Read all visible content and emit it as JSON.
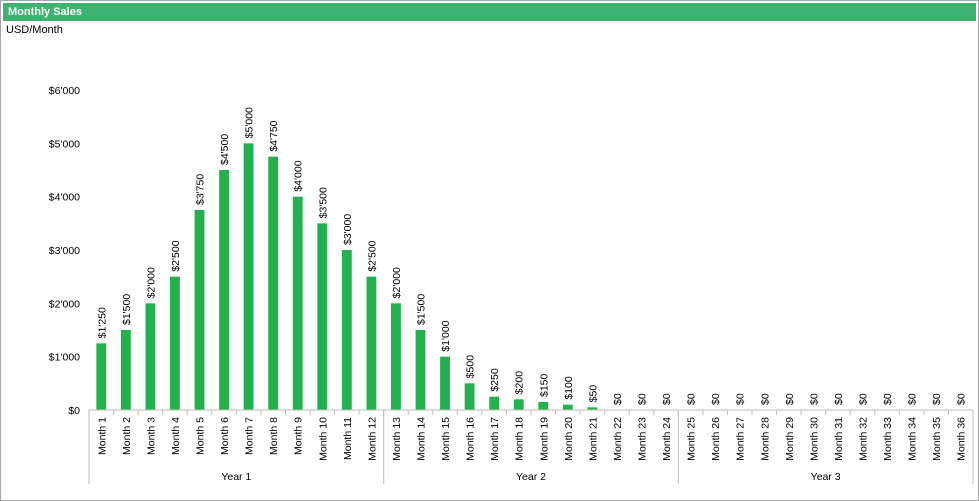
{
  "header": {
    "title": "Monthly Sales",
    "subtitle": "USD/Month"
  },
  "colors": {
    "header_bar": "#3cb371",
    "bar": "#22b14c",
    "axis": "#bfbfbf"
  },
  "chart_data": {
    "type": "bar",
    "title": "Monthly Sales",
    "ylabel": "USD/Month",
    "ylim": [
      0,
      6000
    ],
    "y_ticks": [
      0,
      1000,
      2000,
      3000,
      4000,
      5000,
      6000
    ],
    "y_tick_labels": [
      "$0",
      "$1'000",
      "$2'000",
      "$3'000",
      "$4'000",
      "$5'000",
      "$6'000"
    ],
    "grid": false,
    "legend": "none",
    "categories": [
      "Month 1",
      "Month 2",
      "Month 3",
      "Month 4",
      "Month 5",
      "Month 6",
      "Month 7",
      "Month 8",
      "Month 9",
      "Month 10",
      "Month 11",
      "Month 12",
      "Month 13",
      "Month 14",
      "Month 15",
      "Month 16",
      "Month 17",
      "Month 18",
      "Month 19",
      "Month 20",
      "Month 21",
      "Month 22",
      "Month 23",
      "Month 24",
      "Month 25",
      "Month 26",
      "Month 27",
      "Month 28",
      "Month 29",
      "Month 30",
      "Month 31",
      "Month 32",
      "Month 33",
      "Month 34",
      "Month 35",
      "Month 36"
    ],
    "values": [
      1250,
      1500,
      2000,
      2500,
      3750,
      4500,
      5000,
      4750,
      4000,
      3500,
      3000,
      2500,
      2000,
      1500,
      1000,
      500,
      250,
      200,
      150,
      100,
      50,
      0,
      0,
      0,
      0,
      0,
      0,
      0,
      0,
      0,
      0,
      0,
      0,
      0,
      0,
      0
    ],
    "data_labels": [
      "$1'250",
      "$1'500",
      "$2'000",
      "$2'500",
      "$3'750",
      "$4'500",
      "$5'000",
      "$4'750",
      "$4'000",
      "$3'500",
      "$3'000",
      "$2'500",
      "$2'000",
      "$1'500",
      "$1'000",
      "$500",
      "$250",
      "$200",
      "$150",
      "$100",
      "$50",
      "$0",
      "$0",
      "$0",
      "$0",
      "$0",
      "$0",
      "$0",
      "$0",
      "$0",
      "$0",
      "$0",
      "$0",
      "$0",
      "$0",
      "$0"
    ],
    "groups": [
      {
        "label": "Year 1",
        "count": 12
      },
      {
        "label": "Year 2",
        "count": 12
      },
      {
        "label": "Year 3",
        "count": 12
      }
    ]
  }
}
